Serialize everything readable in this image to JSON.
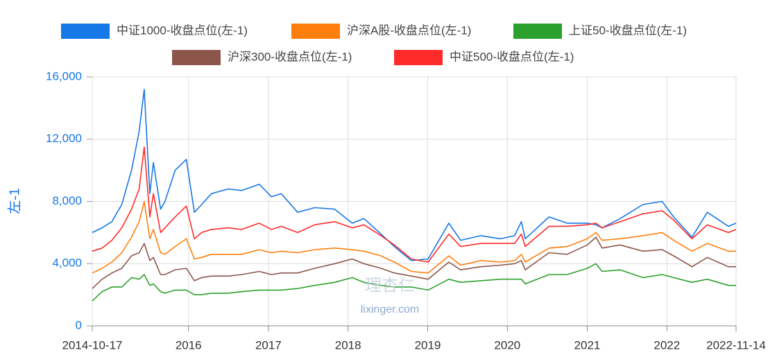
{
  "chart_data": {
    "type": "line",
    "y_label": "左-1",
    "watermark": {
      "logo": "理杏仁",
      "site": "lixinger.com"
    },
    "x": [
      "2014-10-17",
      "2014-12-01",
      "2015-01-15",
      "2015-03-01",
      "2015-04-15",
      "2015-05-20",
      "2015-06-12",
      "2015-07-08",
      "2015-07-24",
      "2015-08-26",
      "2015-09-15",
      "2015-11-01",
      "2015-12-22",
      "2016-01-28",
      "2016-03-01",
      "2016-04-15",
      "2016-07-01",
      "2016-09-01",
      "2016-11-20",
      "2017-01-15",
      "2017-03-01",
      "2017-05-15",
      "2017-08-01",
      "2017-11-01",
      "2018-01-20",
      "2018-03-15",
      "2018-06-01",
      "2018-08-01",
      "2018-10-18",
      "2019-01-03",
      "2019-04-08",
      "2019-06-01",
      "2019-09-01",
      "2019-12-01",
      "2020-02-03",
      "2020-03-05",
      "2020-03-23",
      "2020-07-10",
      "2020-10-01",
      "2021-01-01",
      "2021-02-10",
      "2021-03-10",
      "2021-06-01",
      "2021-09-13",
      "2021-12-10",
      "2022-02-01",
      "2022-04-26",
      "2022-07-05",
      "2022-10-10",
      "2022-11-14"
    ],
    "series": [
      {
        "name": "中证1000-收盘点位(左-1)",
        "color": "#1677e6",
        "values": [
          6000,
          6300,
          6700,
          7800,
          10000,
          12500,
          15200,
          8500,
          10500,
          7500,
          8000,
          10000,
          10700,
          7300,
          7800,
          8500,
          8800,
          8700,
          9100,
          8300,
          8500,
          7300,
          7600,
          7500,
          6600,
          6900,
          5900,
          5100,
          4200,
          4300,
          6600,
          5500,
          5800,
          5600,
          5800,
          6700,
          5600,
          7000,
          6600,
          6600,
          6500,
          6300,
          6900,
          7800,
          8000,
          7000,
          5700,
          7300,
          6400,
          6600
        ]
      },
      {
        "name": "沪深A股-收盘点位(左-1)",
        "color": "#ff7f0e",
        "values": [
          3400,
          3700,
          4100,
          4700,
          5700,
          6700,
          8000,
          5600,
          6200,
          4700,
          4600,
          5100,
          5600,
          4300,
          4400,
          4600,
          4600,
          4600,
          4900,
          4700,
          4800,
          4700,
          4900,
          5000,
          4900,
          4800,
          4500,
          4100,
          3500,
          3400,
          4500,
          3900,
          4200,
          4100,
          4200,
          4600,
          4100,
          5000,
          5100,
          5600,
          6000,
          5500,
          5600,
          5800,
          6000,
          5500,
          4800,
          5300,
          4800,
          4800
        ]
      },
      {
        "name": "上证50-收盘点位(左-1)",
        "color": "#2ca02c",
        "values": [
          1600,
          2200,
          2500,
          2500,
          3100,
          3000,
          3300,
          2600,
          2700,
          2200,
          2100,
          2300,
          2300,
          2000,
          2000,
          2100,
          2100,
          2200,
          2300,
          2300,
          2300,
          2400,
          2600,
          2800,
          3100,
          2800,
          2600,
          2500,
          2500,
          2300,
          3000,
          2800,
          2900,
          3000,
          3000,
          3000,
          2700,
          3300,
          3300,
          3700,
          4000,
          3500,
          3600,
          3100,
          3300,
          3100,
          2800,
          3000,
          2600,
          2600
        ]
      },
      {
        "name": "沪深300-收盘点位(左-1)",
        "color": "#8c564b",
        "values": [
          2400,
          3000,
          3400,
          3700,
          4500,
          4700,
          5300,
          4200,
          4400,
          3300,
          3300,
          3600,
          3700,
          2900,
          3100,
          3200,
          3200,
          3300,
          3500,
          3300,
          3400,
          3400,
          3700,
          4000,
          4300,
          4000,
          3700,
          3400,
          3200,
          3000,
          4100,
          3600,
          3800,
          3900,
          4000,
          4200,
          3600,
          4700,
          4600,
          5200,
          5700,
          5000,
          5200,
          4800,
          4900,
          4500,
          3800,
          4400,
          3800,
          3800
        ]
      },
      {
        "name": "中证500-收盘点位(左-1)",
        "color": "#ff2a2a",
        "values": [
          4800,
          5000,
          5500,
          6300,
          7500,
          8800,
          11500,
          7000,
          8500,
          6000,
          6300,
          7000,
          7700,
          5600,
          6000,
          6200,
          6300,
          6200,
          6600,
          6200,
          6400,
          6000,
          6500,
          6700,
          6300,
          6500,
          5800,
          5200,
          4300,
          4100,
          5900,
          5100,
          5300,
          5300,
          5300,
          5900,
          5100,
          6400,
          6400,
          6500,
          6600,
          6300,
          6700,
          7200,
          7400,
          6800,
          5600,
          6500,
          6000,
          6200
        ]
      }
    ],
    "xlim": [
      "2014-10-17",
      "2022-11-14"
    ],
    "xticks": [
      "2014-10-17",
      {
        "value": "2016-01-01",
        "label": "2016"
      },
      {
        "value": "2017-01-01",
        "label": "2017"
      },
      {
        "value": "2018-01-01",
        "label": "2018"
      },
      {
        "value": "2019-01-01",
        "label": "2019"
      },
      {
        "value": "2020-01-01",
        "label": "2020"
      },
      {
        "value": "2021-01-01",
        "label": "2021"
      },
      {
        "value": "2022-01-01",
        "label": "2022"
      },
      "2022-11-14"
    ],
    "ylim": [
      0,
      16000
    ],
    "yticks": [
      0,
      {
        "value": 4000,
        "label": "4,000"
      },
      {
        "value": 8000,
        "label": "8,000"
      },
      {
        "value": 12000,
        "label": "12,000"
      },
      {
        "value": 16000,
        "label": "16,000"
      }
    ],
    "grid": true
  }
}
